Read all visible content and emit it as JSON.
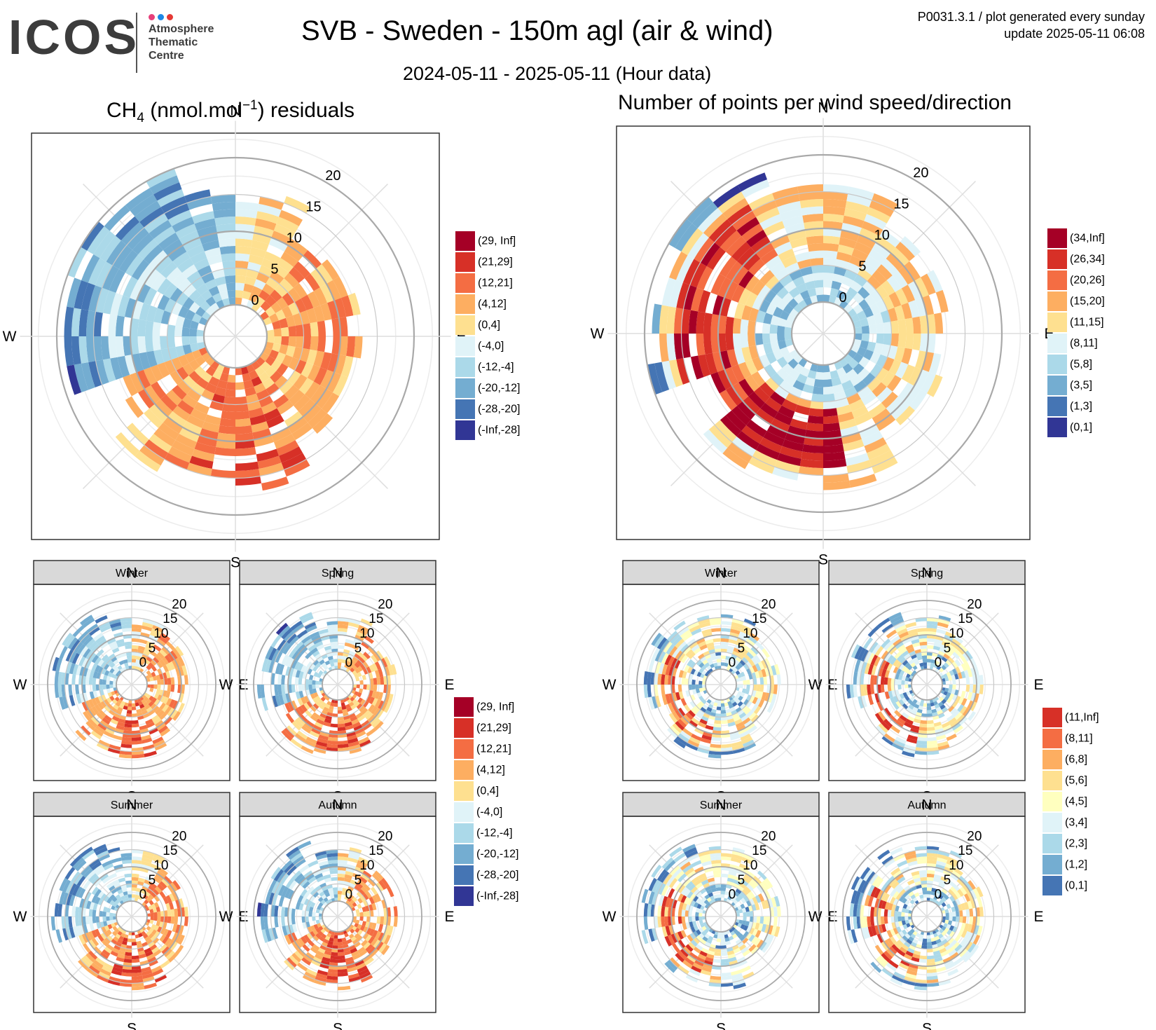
{
  "header": {
    "logo_text": "ICOS",
    "logo_lines": [
      "Atmosphere",
      "Thematic",
      "Centre"
    ],
    "logo_dot_colors": [
      "#e6407a",
      "#1e88e5",
      "#e53935"
    ],
    "title": "SVB - Sweden - 150m agl (air & wind)",
    "subtitle": "2024-05-11 - 2025-05-11 (Hour data)",
    "note_line1": "P0031.3.1 / plot generated every sunday",
    "note_line2": "update  2025-05-11 06:08"
  },
  "panel_titles": {
    "ch4_main": "CH",
    "ch4_sub": "4",
    "ch4_unit": " (nmol.mol",
    "ch4_sup": "−1",
    "ch4_tail": ") residuals",
    "npts": "Number of points per wind speed/direction"
  },
  "compass": [
    "N",
    "E",
    "S",
    "W"
  ],
  "facet_labels": [
    "Winter",
    "Spring",
    "Summer",
    "Autumn"
  ],
  "colors": {
    "residual_scale": [
      "#a50026",
      "#d73027",
      "#f46d43",
      "#fdae61",
      "#fee090",
      "#e0f3f8",
      "#abd9e9",
      "#74add1",
      "#4575b4",
      "#313695"
    ],
    "count_scale": [
      "#a50026",
      "#d73027",
      "#f46d43",
      "#fdae61",
      "#fee090",
      "#e0f3f8",
      "#abd9e9",
      "#74add1",
      "#4575b4",
      "#313695"
    ],
    "season_count_scale": [
      "#d73027",
      "#f46d43",
      "#fdae61",
      "#fee090",
      "#ffffbf",
      "#e0f3f8",
      "#abd9e9",
      "#74add1",
      "#4575b4"
    ]
  },
  "chart_data": [
    {
      "type": "heatmap",
      "panel": "ch4-residuals",
      "coordinate": "polar",
      "r_ticks": [
        0,
        5,
        10,
        15,
        20
      ],
      "legend": [
        "(29, Inf]",
        "(21,29]",
        "(12,21]",
        "(4,12]",
        "(0,4]",
        "(-4,0]",
        "(-12,-4]",
        "(-20,-12]",
        "(-28,-20]",
        "(-Inf,-28]"
      ],
      "sectors": [
        {
          "dir_range": [
            0,
            30
          ],
          "dominant_class": "(0,4]"
        },
        {
          "dir_range": [
            30,
            90
          ],
          "dominant_class": "(4,12]"
        },
        {
          "dir_range": [
            90,
            150
          ],
          "dominant_class": "(4,12]"
        },
        {
          "dir_range": [
            150,
            200
          ],
          "dominant_class": "(12,21]"
        },
        {
          "dir_range": [
            200,
            250
          ],
          "dominant_class": "(4,12]"
        },
        {
          "dir_range": [
            250,
            360
          ],
          "dominant_class": "(-12,-4]"
        }
      ]
    },
    {
      "type": "heatmap",
      "panel": "points-per-wind",
      "coordinate": "polar",
      "r_ticks": [
        0,
        5,
        10,
        15,
        20
      ],
      "legend": [
        "(34,Inf]",
        "(26,34]",
        "(20,26]",
        "(15,20]",
        "(11,15]",
        "(8,11]",
        "(5,8]",
        "(3,5]",
        "(1,3]",
        "(0,1]"
      ],
      "sectors": [
        {
          "dir_range": [
            170,
            230
          ],
          "dominant_class": "(34,Inf]"
        },
        {
          "dir_range": [
            230,
            330
          ],
          "dominant_class": "(26,34]"
        },
        {
          "dir_range": [
            330,
            60
          ],
          "dominant_class": "(11,15]"
        },
        {
          "dir_range": [
            60,
            170
          ],
          "dominant_class": "(5,8]"
        }
      ]
    },
    {
      "type": "heatmap",
      "panel": "ch4-residuals-by-season",
      "coordinate": "polar",
      "facets": [
        "Winter",
        "Spring",
        "Summer",
        "Autumn"
      ],
      "r_ticks": [
        0,
        5,
        10,
        15,
        20
      ],
      "legend": [
        "(29, Inf]",
        "(21,29]",
        "(12,21]",
        "(4,12]",
        "(0,4]",
        "(-4,0]",
        "(-12,-4]",
        "(-20,-12]",
        "(-28,-20]",
        "(-Inf,-28]"
      ]
    },
    {
      "type": "heatmap",
      "panel": "points-by-season",
      "coordinate": "polar",
      "facets": [
        "Winter",
        "Spring",
        "Summer",
        "Autumn"
      ],
      "r_ticks": [
        0,
        5,
        10,
        15,
        20
      ],
      "legend": [
        "(11,Inf]",
        "(8,11]",
        "(6,8]",
        "(5,6]",
        "(4,5]",
        "(3,4]",
        "(2,3]",
        "(1,2]",
        "(0,1]"
      ]
    }
  ]
}
